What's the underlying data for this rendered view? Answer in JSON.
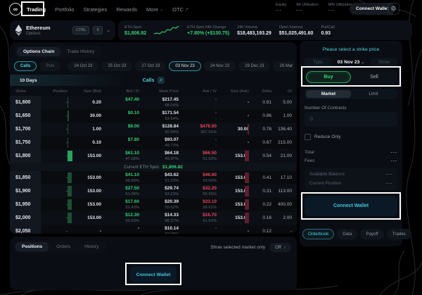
{
  "icons": {
    "settings": "⚙",
    "chevron_down": "⌄",
    "external_link": "↗",
    "logo": "∞",
    "toggle_chevron": "›"
  },
  "nav": {
    "items": [
      {
        "label": "Trading",
        "active": true
      },
      {
        "label": "Portfolio"
      },
      {
        "label": "Strategies"
      },
      {
        "label": "Rewards"
      },
      {
        "label": "More",
        "chevron": true
      },
      {
        "label": "OTC",
        "external": true
      }
    ],
    "stats": [
      {
        "label": "Equity",
        "value": "---"
      },
      {
        "label": "IM Utilization",
        "value": "---"
      },
      {
        "label": "MM Utilization",
        "value": "---"
      }
    ],
    "connect_label": "Connect Wallet"
  },
  "market_bar": {
    "asset_name": "Ethereum",
    "asset_sub": "Options",
    "shortcut_keys": [
      "CTRL",
      "K"
    ],
    "stats": [
      {
        "label": "ETH Spot",
        "value": "$1,806.82",
        "tone": "green"
      },
      {
        "label": "ETH Spot 24h Change",
        "value": "+7.80% (+$130.75)",
        "tone": "green"
      },
      {
        "label": "24h Volume",
        "value": "$18,483,193.29",
        "tone": "white"
      },
      {
        "label": "Open Interest",
        "value": "$51,025,491.60",
        "tone": "white"
      },
      {
        "label": "Put/Call",
        "value": "0.93",
        "tone": "white"
      }
    ]
  },
  "chain": {
    "tabs": [
      {
        "label": "Options Chain",
        "active": true
      },
      {
        "label": "Trade History"
      }
    ],
    "side_toggle": [
      {
        "label": "Calls",
        "active": true
      },
      {
        "label": "Puts"
      }
    ],
    "dates": [
      "24 Oct 23",
      "25 Oct 23",
      "27 Oct 23",
      "03 Nov 23",
      "24 Nov 23",
      "29 Dec 23",
      "29 Mar 24"
    ],
    "active_date": "03 Nov 23",
    "days_label": "10 Days",
    "center_label": "Calls",
    "columns": [
      "Strike",
      "Position",
      "Size (Bid)",
      "Bid / IV",
      "Mark Price",
      "Ask / IV",
      "Size (Ask)",
      "Delta",
      "OI"
    ],
    "spot_divider": {
      "after_row": 5,
      "label": "Current ETH Spot:",
      "value": "$1,806.82"
    },
    "rows": [
      {
        "strike": "$1,600",
        "position": "-",
        "size_bid": "0.20",
        "bid": "$47.40",
        "bid_iv": "-",
        "mark": "$217.45",
        "mark_iv": "58.04%",
        "ask": "-",
        "ask_iv": "-",
        "size_ask": "-",
        "delta": "0.91",
        "oi": "5.00",
        "bid_bar": 1,
        "ask_bar": 0
      },
      {
        "strike": "$1,650",
        "position": "-",
        "size_bid": "30.00",
        "bid": "$0.10",
        "bid_iv": "-",
        "mark": "$171.54",
        "mark_iv": "53.64%",
        "ask": "-",
        "ask_iv": "-",
        "size_ask": "-",
        "delta": "0.86",
        "oi": "1.00",
        "bid_bar": 2,
        "ask_bar": 0
      },
      {
        "strike": "$1,700",
        "position": "-",
        "size_bid": "1.00",
        "bid": "$8.00",
        "bid_iv": "-",
        "mark": "$128.84",
        "mark_iv": "50.94%",
        "ask": "$476.00",
        "ask_iv": "367.51%",
        "size_ask": "30.00",
        "delta": "0.78",
        "oi": "136.40",
        "bid_bar": 1,
        "ask_bar": 2
      },
      {
        "strike": "$1,750",
        "position": "-",
        "size_bid": "0.10",
        "bid": "$7.80",
        "bid_iv": "-",
        "mark": "$93.07",
        "mark_iv": "49.73%",
        "ask": "-",
        "ask_iv": "-",
        "size_ask": "-",
        "delta": "0.67",
        "oi": "215.00",
        "bid_bar": 1,
        "ask_bar": 0
      },
      {
        "strike": "$1,800",
        "position": "-",
        "size_bid": "153.00",
        "bid": "$61.10",
        "bid_iv": "47.08%",
        "mark": "$64.18",
        "mark_iv": "49.97%",
        "ask": "$66.50",
        "ask_iv": "51.63%",
        "size_ask": "153.00",
        "delta": "0.54",
        "oi": "21.00",
        "bid_bar": 7,
        "ask_bar": 6
      },
      {
        "strike": "$1,850",
        "position": "-",
        "size_bid": "153.00",
        "bid": "$41.10",
        "bid_iv": "48.89%",
        "mark": "$43.62",
        "mark_iv": "51.23%",
        "ask": "$46.60",
        "ask_iv": "53.60%",
        "size_ask": "153.00",
        "delta": "0.41",
        "oi": "17.10",
        "bid_bar": 6,
        "ask_bar": 6
      },
      {
        "strike": "$1,900",
        "position": "-",
        "size_bid": "153.00",
        "bid": "$27.50",
        "bid_iv": "51.08%",
        "mark": "$29.74",
        "mark_iv": "53.23%",
        "ask": "$32.20",
        "ask_iv": "55.55%",
        "size_ask": "153.00",
        "delta": "0.31",
        "oi": "113.00",
        "bid_bar": 6,
        "ask_bar": 6
      },
      {
        "strike": "$1,950",
        "position": "-",
        "size_bid": "153.00",
        "bid": "$17.60",
        "bid_iv": "52.43%",
        "mark": "$20.39",
        "mark_iv": "55.62%",
        "ask": "$23.10",
        "ask_iv": "58.61%",
        "size_ask": "153.00",
        "delta": "0.22",
        "oi": "400.00",
        "bid_bar": 6,
        "ask_bar": 6
      },
      {
        "strike": "$2,000",
        "position": "-",
        "size_bid": "153.00",
        "bid": "$12.30",
        "bid_iv": "55.53%",
        "mark": "$14.33",
        "mark_iv": "58.37%",
        "ask": "$16.70",
        "ask_iv": "61.51%",
        "size_ask": "153.00",
        "delta": "0.16",
        "oi": "2.00",
        "bid_bar": 6,
        "ask_bar": 6
      },
      {
        "strike": "$2,050",
        "position": "-",
        "size_bid": "-",
        "bid": "-",
        "bid_iv": "-",
        "mark": "$10.14",
        "mark_iv": "60.98%",
        "ask": "-",
        "ask_iv": "-",
        "size_ask": "-",
        "delta": "0.12",
        "oi": "-",
        "bid_bar": 0,
        "ask_bar": 0
      }
    ]
  },
  "positions_panel": {
    "tabs": [
      {
        "label": "Positions",
        "active": true
      },
      {
        "label": "Orders"
      },
      {
        "label": "History"
      }
    ],
    "filter_label": "Show selected market only",
    "toggle_label": "Off",
    "connect_label": "Connect Wallet"
  },
  "order_panel": {
    "prompt": "Please select a strike price",
    "type_label": "Type",
    "expiry_value": "03 Nov 23",
    "strike_label": "Strike",
    "buy_label": "Buy",
    "sell_label": "Sell",
    "order_type_tabs": [
      {
        "label": "Market",
        "active": true
      },
      {
        "label": "Limit"
      }
    ],
    "contracts_label": "Number Of Contracts",
    "contracts_placeholder": "0",
    "reduce_only_label": "Reduce Only",
    "summary": [
      {
        "label": "Total",
        "value": "---"
      },
      {
        "label": "Fees",
        "value": "---"
      }
    ],
    "account": [
      {
        "label": "Available Balance",
        "value": "---"
      },
      {
        "label": "Current Position",
        "value": "---"
      }
    ],
    "connect_label": "Connect Wallet",
    "bottom_tabs": [
      {
        "label": "Orderbook",
        "active": true
      },
      {
        "label": "Data"
      },
      {
        "label": "Payoff"
      },
      {
        "label": "Trades"
      }
    ]
  },
  "colors": {
    "teal": "#4fd4e4",
    "green": "#35d073",
    "red": "#ef4458",
    "buy_green": "#39d673"
  }
}
